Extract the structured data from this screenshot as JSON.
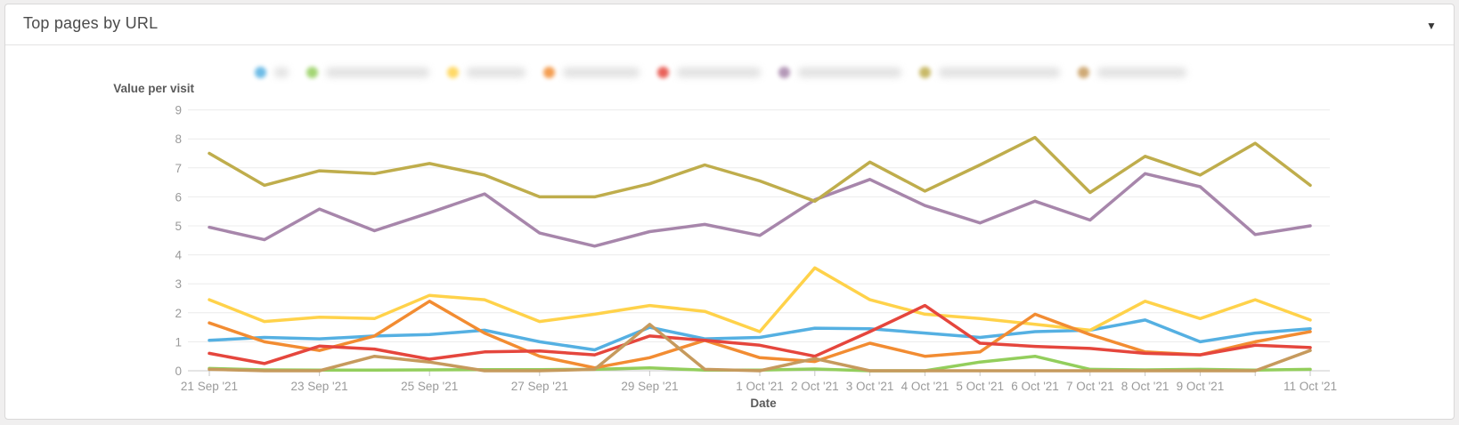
{
  "panel": {
    "title": "Top pages by URL",
    "collapse_caret": "▼"
  },
  "axes": {
    "y_title": "Value per visit",
    "x_title": "Date"
  },
  "chart_data": {
    "type": "line",
    "title": "Top pages by URL",
    "xlabel": "Date",
    "ylabel": "Value per visit",
    "ylim": [
      0,
      9
    ],
    "y_ticks": [
      0,
      1,
      2,
      3,
      4,
      5,
      6,
      7,
      8,
      9
    ],
    "grid": "horizontal",
    "x": [
      "21 Sep '21",
      "22 Sep '21",
      "23 Sep '21",
      "24 Sep '21",
      "25 Sep '21",
      "26 Sep '21",
      "27 Sep '21",
      "28 Sep '21",
      "29 Sep '21",
      "30 Sep '21",
      "1 Oct '21",
      "2 Oct '21",
      "3 Oct '21",
      "4 Oct '21",
      "5 Oct '21",
      "6 Oct '21",
      "7 Oct '21",
      "8 Oct '21",
      "9 Oct '21",
      "10 Oct '21",
      "11 Oct '21"
    ],
    "x_labeled_indices": [
      0,
      2,
      4,
      6,
      8,
      10,
      11,
      12,
      13,
      14,
      15,
      16,
      17,
      18,
      20
    ],
    "x_tick_indices": [
      0,
      2,
      4,
      6,
      8,
      10,
      11,
      12,
      13,
      14,
      15,
      16,
      17,
      18,
      19,
      20
    ],
    "legend": {
      "position": "top",
      "labels_redacted": true,
      "items": [
        {
          "name": "series-1",
          "color": "#55b0e2",
          "label_width": 16
        },
        {
          "name": "series-2",
          "color": "#93ce5c",
          "label_width": 116
        },
        {
          "name": "series-3",
          "color": "#ffd24a",
          "label_width": 66
        },
        {
          "name": "series-4",
          "color": "#f28c32",
          "label_width": 86
        },
        {
          "name": "series-5",
          "color": "#e5463d",
          "label_width": 94
        },
        {
          "name": "series-6",
          "color": "#a786ab",
          "label_width": 116
        },
        {
          "name": "series-7",
          "color": "#bfad4c",
          "label_width": 136
        },
        {
          "name": "series-8",
          "color": "#c69a5d",
          "label_width": 100
        }
      ]
    },
    "series": [
      {
        "name": "series-1",
        "color": "#55b0e2",
        "values": [
          1.05,
          1.15,
          1.1,
          1.2,
          1.25,
          1.4,
          1.0,
          0.72,
          1.5,
          1.1,
          1.15,
          1.47,
          1.45,
          1.3,
          1.15,
          1.35,
          1.4,
          1.75,
          1.0,
          1.3,
          1.45
        ]
      },
      {
        "name": "series-2",
        "color": "#93ce5c",
        "values": [
          0.08,
          0.03,
          0.02,
          0.02,
          0.03,
          0.04,
          0.04,
          0.05,
          0.1,
          0.02,
          0.02,
          0.06,
          0.0,
          0.0,
          0.3,
          0.5,
          0.05,
          0.03,
          0.05,
          0.02,
          0.05
        ]
      },
      {
        "name": "series-3",
        "color": "#ffd24a",
        "values": [
          2.45,
          1.7,
          1.85,
          1.8,
          2.6,
          2.45,
          1.7,
          1.95,
          2.25,
          2.05,
          1.35,
          3.55,
          2.45,
          1.95,
          1.8,
          1.6,
          1.4,
          2.4,
          1.8,
          2.45,
          1.75
        ]
      },
      {
        "name": "series-4",
        "color": "#f28c32",
        "values": [
          1.65,
          1.0,
          0.7,
          1.2,
          2.4,
          1.3,
          0.5,
          0.1,
          0.45,
          1.05,
          0.45,
          0.32,
          0.95,
          0.5,
          0.65,
          1.95,
          1.25,
          0.65,
          0.55,
          1.0,
          1.35
        ]
      },
      {
        "name": "series-5",
        "color": "#e5463d",
        "values": [
          0.6,
          0.25,
          0.85,
          0.75,
          0.4,
          0.65,
          0.68,
          0.55,
          1.2,
          1.05,
          0.88,
          0.5,
          1.35,
          2.25,
          0.95,
          0.84,
          0.77,
          0.6,
          0.55,
          0.88,
          0.8
        ]
      },
      {
        "name": "series-6",
        "color": "#a786ab",
        "values": [
          4.95,
          4.52,
          5.58,
          4.83,
          5.45,
          6.1,
          4.75,
          4.3,
          4.8,
          5.05,
          4.67,
          5.9,
          6.6,
          5.7,
          5.1,
          5.85,
          5.2,
          6.8,
          6.35,
          4.7,
          5.0
        ]
      },
      {
        "name": "series-7",
        "color": "#bfad4c",
        "values": [
          7.5,
          6.4,
          6.9,
          6.8,
          7.15,
          6.75,
          6.0,
          6.0,
          6.45,
          7.1,
          6.55,
          5.85,
          7.2,
          6.2,
          7.1,
          8.05,
          6.15,
          7.4,
          6.75,
          7.85,
          6.4
        ]
      },
      {
        "name": "series-8",
        "color": "#c69a5d",
        "values": [
          0.05,
          0.0,
          0.0,
          0.5,
          0.3,
          0.0,
          0.0,
          0.05,
          1.6,
          0.05,
          0.0,
          0.42,
          0.0,
          0.0,
          0.0,
          0.0,
          0.0,
          0.0,
          0.0,
          0.0,
          0.7
        ]
      }
    ]
  }
}
